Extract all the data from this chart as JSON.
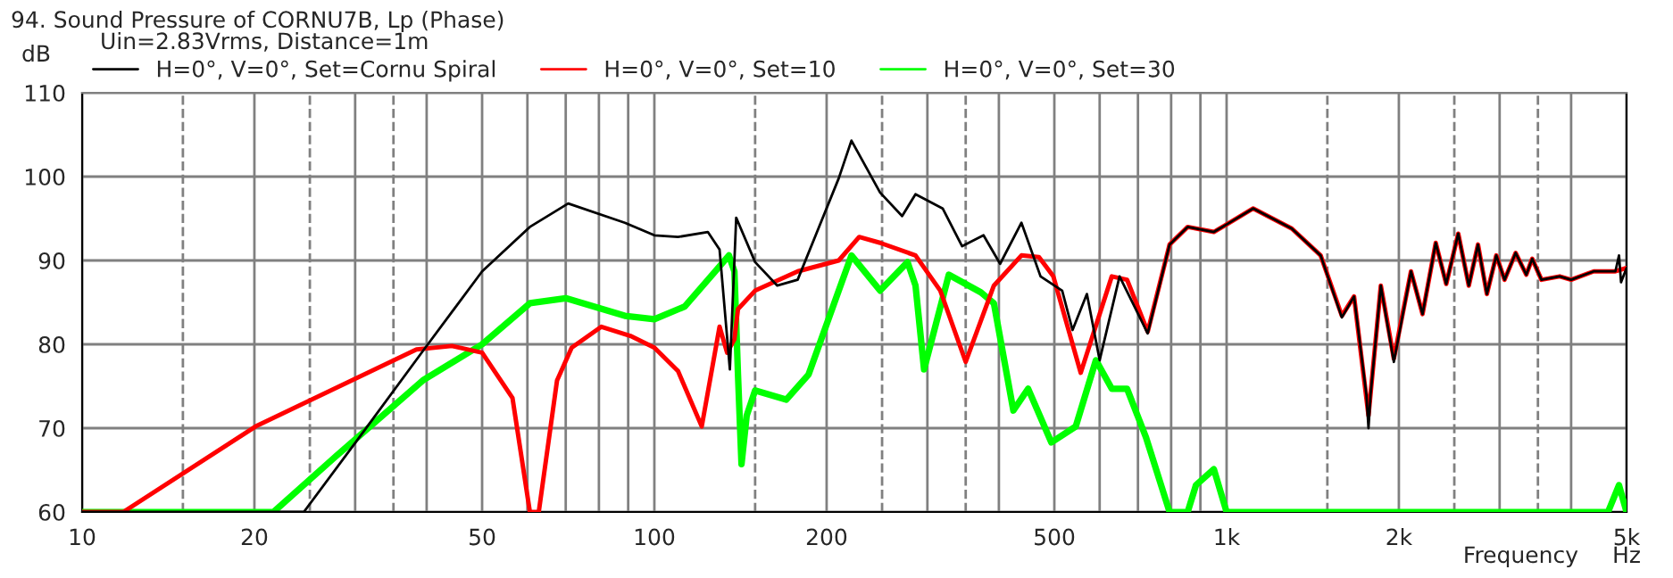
{
  "chart_data": {
    "type": "line",
    "title": "94. Sound Pressure of CORNU7B, Lp (Phase)",
    "subtitle": "Uin=2.83Vrms, Distance=1m",
    "ylabel": "dB",
    "xlabel": "Frequency",
    "annotations": [
      "Hz"
    ],
    "log": "x",
    "grid": true,
    "legend": "top",
    "line_style": "solid",
    "marker": "none",
    "xlim": [
      10,
      5000
    ],
    "ylim": [
      60,
      110
    ],
    "yticks": [
      60,
      70,
      80,
      90,
      100,
      110
    ],
    "xticks": [
      10,
      20,
      {
        "value": 30,
        "label": null
      },
      {
        "value": 40,
        "label": null
      },
      50,
      {
        "value": 60,
        "label": null
      },
      {
        "value": 70,
        "label": null
      },
      {
        "value": 80,
        "label": null
      },
      {
        "value": 90,
        "label": null
      },
      100,
      200,
      {
        "value": 300,
        "label": null
      },
      {
        "value": 400,
        "label": null
      },
      500,
      {
        "value": 600,
        "label": null
      },
      {
        "value": 700,
        "label": null
      },
      {
        "value": 800,
        "label": null
      },
      {
        "value": 900,
        "label": null
      },
      {
        "value": 1000,
        "label": "1k"
      },
      {
        "value": 2000,
        "label": "2k"
      },
      {
        "value": 3000,
        "label": null
      },
      {
        "value": 4000,
        "label": null
      },
      {
        "value": 5000,
        "label": "5k"
      }
    ],
    "ref_lines": [
      {
        "axis": "x",
        "value": 15,
        "color": "#808080",
        "line_style": "dashed"
      },
      {
        "axis": "x",
        "value": 25,
        "color": "#808080",
        "line_style": "dashed"
      },
      {
        "axis": "x",
        "value": 35,
        "color": "#808080",
        "line_style": "dashed"
      },
      {
        "axis": "x",
        "value": 150,
        "color": "#808080",
        "line_style": "dashed"
      },
      {
        "axis": "x",
        "value": 250,
        "color": "#808080",
        "line_style": "dashed"
      },
      {
        "axis": "x",
        "value": 350,
        "color": "#808080",
        "line_style": "dashed"
      },
      {
        "axis": "x",
        "value": 1500,
        "color": "#808080",
        "line_style": "dashed"
      },
      {
        "axis": "x",
        "value": 2500,
        "color": "#808080",
        "line_style": "dashed"
      },
      {
        "axis": "x",
        "value": 3500,
        "color": "#808080",
        "line_style": "dashed"
      }
    ],
    "series": [
      {
        "name": "H=0°, V=0°, Set=Cornu Spiral",
        "color": "#000000",
        "x": [
          10,
          24.4,
          30.2,
          39.4,
          50,
          60.6,
          70.7,
          88.8,
          100,
          110,
          124,
          130,
          135.5,
          139,
          150,
          164,
          178,
          210,
          221,
          248,
          271,
          286,
          319,
          345,
          376,
          402,
          438,
          473,
          516,
          538,
          570,
          600,
          650,
          728,
          795,
          855,
          950,
          1000,
          1113,
          1300,
          1460,
          1590,
          1670,
          1755,
          1770,
          1785,
          1860,
          1960,
          2100,
          2200,
          2320,
          2420,
          2540,
          2650,
          2750,
          2850,
          2960,
          3060,
          3200,
          3340,
          3420,
          3550,
          3820,
          4000,
          4380,
          4780,
          4850,
          4890,
          5000
        ],
        "values": [
          60,
          60,
          68.5,
          79.2,
          88.7,
          94,
          96.8,
          94.5,
          93,
          92.8,
          93.4,
          91.3,
          77,
          95.1,
          89.8,
          87,
          87.7,
          99.8,
          104.3,
          98.1,
          95.3,
          97.9,
          96.2,
          91.7,
          93,
          89.6,
          94.5,
          88.1,
          86.4,
          81.7,
          86,
          78.1,
          88.1,
          81.3,
          91.9,
          94,
          93.4,
          94.3,
          96.2,
          93.8,
          90.6,
          83.2,
          85.7,
          74,
          70,
          74,
          87,
          77.9,
          88.7,
          83.6,
          92.1,
          87.2,
          93.2,
          87,
          91.9,
          86,
          90.6,
          87.7,
          90.9,
          88.3,
          90.2,
          87.7,
          88.1,
          87.7,
          88.7,
          88.7,
          90.6,
          87.4,
          89.1
        ]
      },
      {
        "name": "H=0°, V=0°, Set=10",
        "color": "#ff0000",
        "x": [
          10,
          11.8,
          20.1,
          38.4,
          44.3,
          50,
          56.5,
          60.6,
          62.8,
          67.6,
          71.7,
          80.8,
          90.8,
          100,
          110,
          121,
          130,
          134,
          138,
          140,
          150,
          178,
          210,
          228,
          248,
          286,
          316,
          350,
          392,
          438,
          470,
          498,
          556,
          630,
          670,
          728,
          795,
          855,
          950,
          1000,
          1113,
          1300,
          1460,
          1590,
          1670,
          1770,
          1860,
          1960,
          2100,
          2200,
          2320,
          2420,
          2540,
          2650,
          2750,
          2850,
          2960,
          3060,
          3200,
          3340,
          3420,
          3550,
          3820,
          4000,
          4380,
          4780,
          5000
        ],
        "values": [
          60,
          60,
          70.2,
          79.4,
          79.8,
          79,
          73.6,
          60,
          60,
          75.7,
          79.6,
          82.1,
          81,
          79.6,
          76.8,
          70.2,
          82.1,
          79,
          80.6,
          84.2,
          86.4,
          88.7,
          90,
          92.8,
          92.1,
          90.6,
          86.4,
          77.9,
          87,
          90.6,
          90.4,
          88.1,
          76.6,
          88.1,
          87.7,
          81.5,
          91.9,
          94,
          93.4,
          94.3,
          96.2,
          93.8,
          90.6,
          83.4,
          85.7,
          71.5,
          87,
          78.3,
          88.7,
          83.6,
          92.1,
          87.2,
          93.2,
          87,
          91.9,
          86,
          90.6,
          87.7,
          90.9,
          88.3,
          90.2,
          87.7,
          88.1,
          87.7,
          88.7,
          88.7,
          89.1
        ]
      },
      {
        "name": "H=0°, V=0°, Set=30",
        "color": "#00ff00",
        "x": [
          10,
          21.6,
          27.5,
          39.4,
          50,
          60.6,
          70,
          88.8,
          100,
          113,
          127,
          135,
          138,
          140,
          142,
          145,
          150,
          170,
          186,
          210,
          221,
          248,
          277,
          286,
          296,
          327,
          372,
          392,
          424,
          450,
          494,
          545,
          591,
          630,
          670,
          723,
          795,
          855,
          884,
          950,
          1000,
          4640,
          4850,
          5000
        ],
        "values": [
          60,
          60,
          66.4,
          75.7,
          80,
          84.9,
          85.5,
          83.4,
          83,
          84.5,
          88.5,
          90.6,
          88.7,
          76.4,
          65.7,
          71.5,
          74.5,
          73.4,
          76.4,
          86.4,
          90.6,
          86.4,
          89.8,
          87,
          77,
          88.3,
          86.2,
          84.9,
          72.1,
          74.7,
          68.3,
          70.2,
          78.1,
          74.7,
          74.7,
          68.9,
          60,
          60,
          63.2,
          65.1,
          60,
          60,
          63.2,
          60
        ]
      }
    ]
  }
}
